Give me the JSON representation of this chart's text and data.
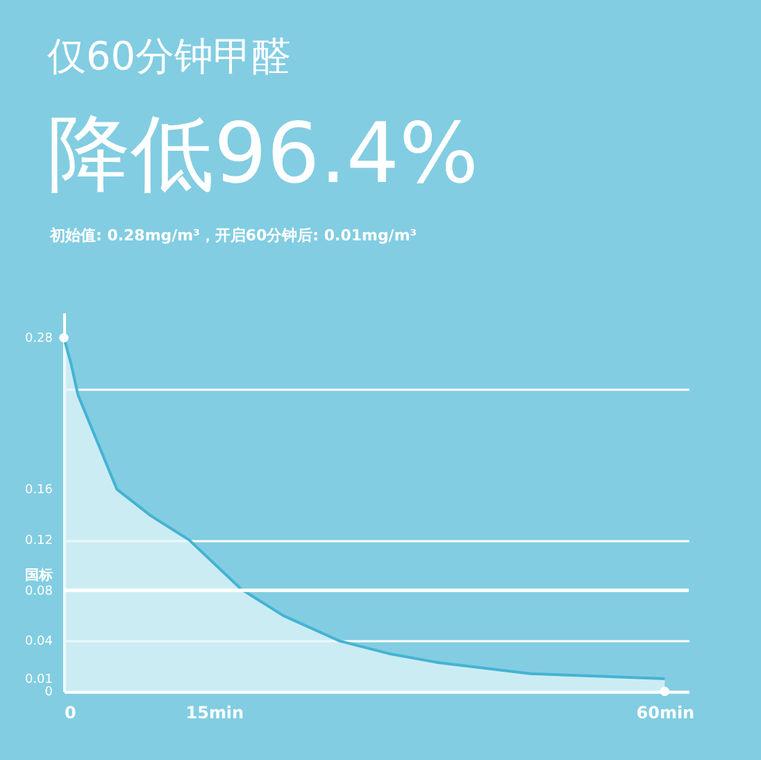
{
  "chart_data": {
    "type": "area",
    "title": "仅60分钟甲醛",
    "subtitle": "降低96.4%",
    "annotations": [
      "初始值: 0.28mg/m³，开启60分钟后: 0.01mg/m³"
    ],
    "x": [
      0,
      0.7,
      1.4,
      5.3,
      8.7,
      12.5,
      17.7,
      21.9,
      27.5,
      32.4,
      37.2,
      46.6,
      60
    ],
    "series": [
      {
        "type": "area",
        "color": "#45b3d3",
        "values": [
          0.28,
          0.26,
          0.235,
          0.16,
          0.139,
          0.12,
          0.081,
          0.06,
          0.04,
          0.03,
          0.023,
          0.014,
          0.01
        ]
      },
      {
        "type": "scatter",
        "color": "#ffffff",
        "x": [
          0,
          60
        ],
        "values": [
          0.28,
          0
        ]
      }
    ],
    "xlim": [
      0,
      62.4
    ],
    "xticks": [
      0,
      {
        "value": 15,
        "label": "15min"
      },
      {
        "value": 60,
        "label": "60min"
      }
    ],
    "ylim": [
      0,
      0.3
    ],
    "yticks": [
      0,
      0.01,
      0.04,
      0.08,
      0.12,
      0.16,
      {
        "value": 0.24,
        "label": null
      },
      0.28
    ],
    "ref_lines": [
      {
        "axis": "y",
        "value": 0.08,
        "label": "国标",
        "color": "#ffffff"
      }
    ],
    "grid": "y"
  }
}
